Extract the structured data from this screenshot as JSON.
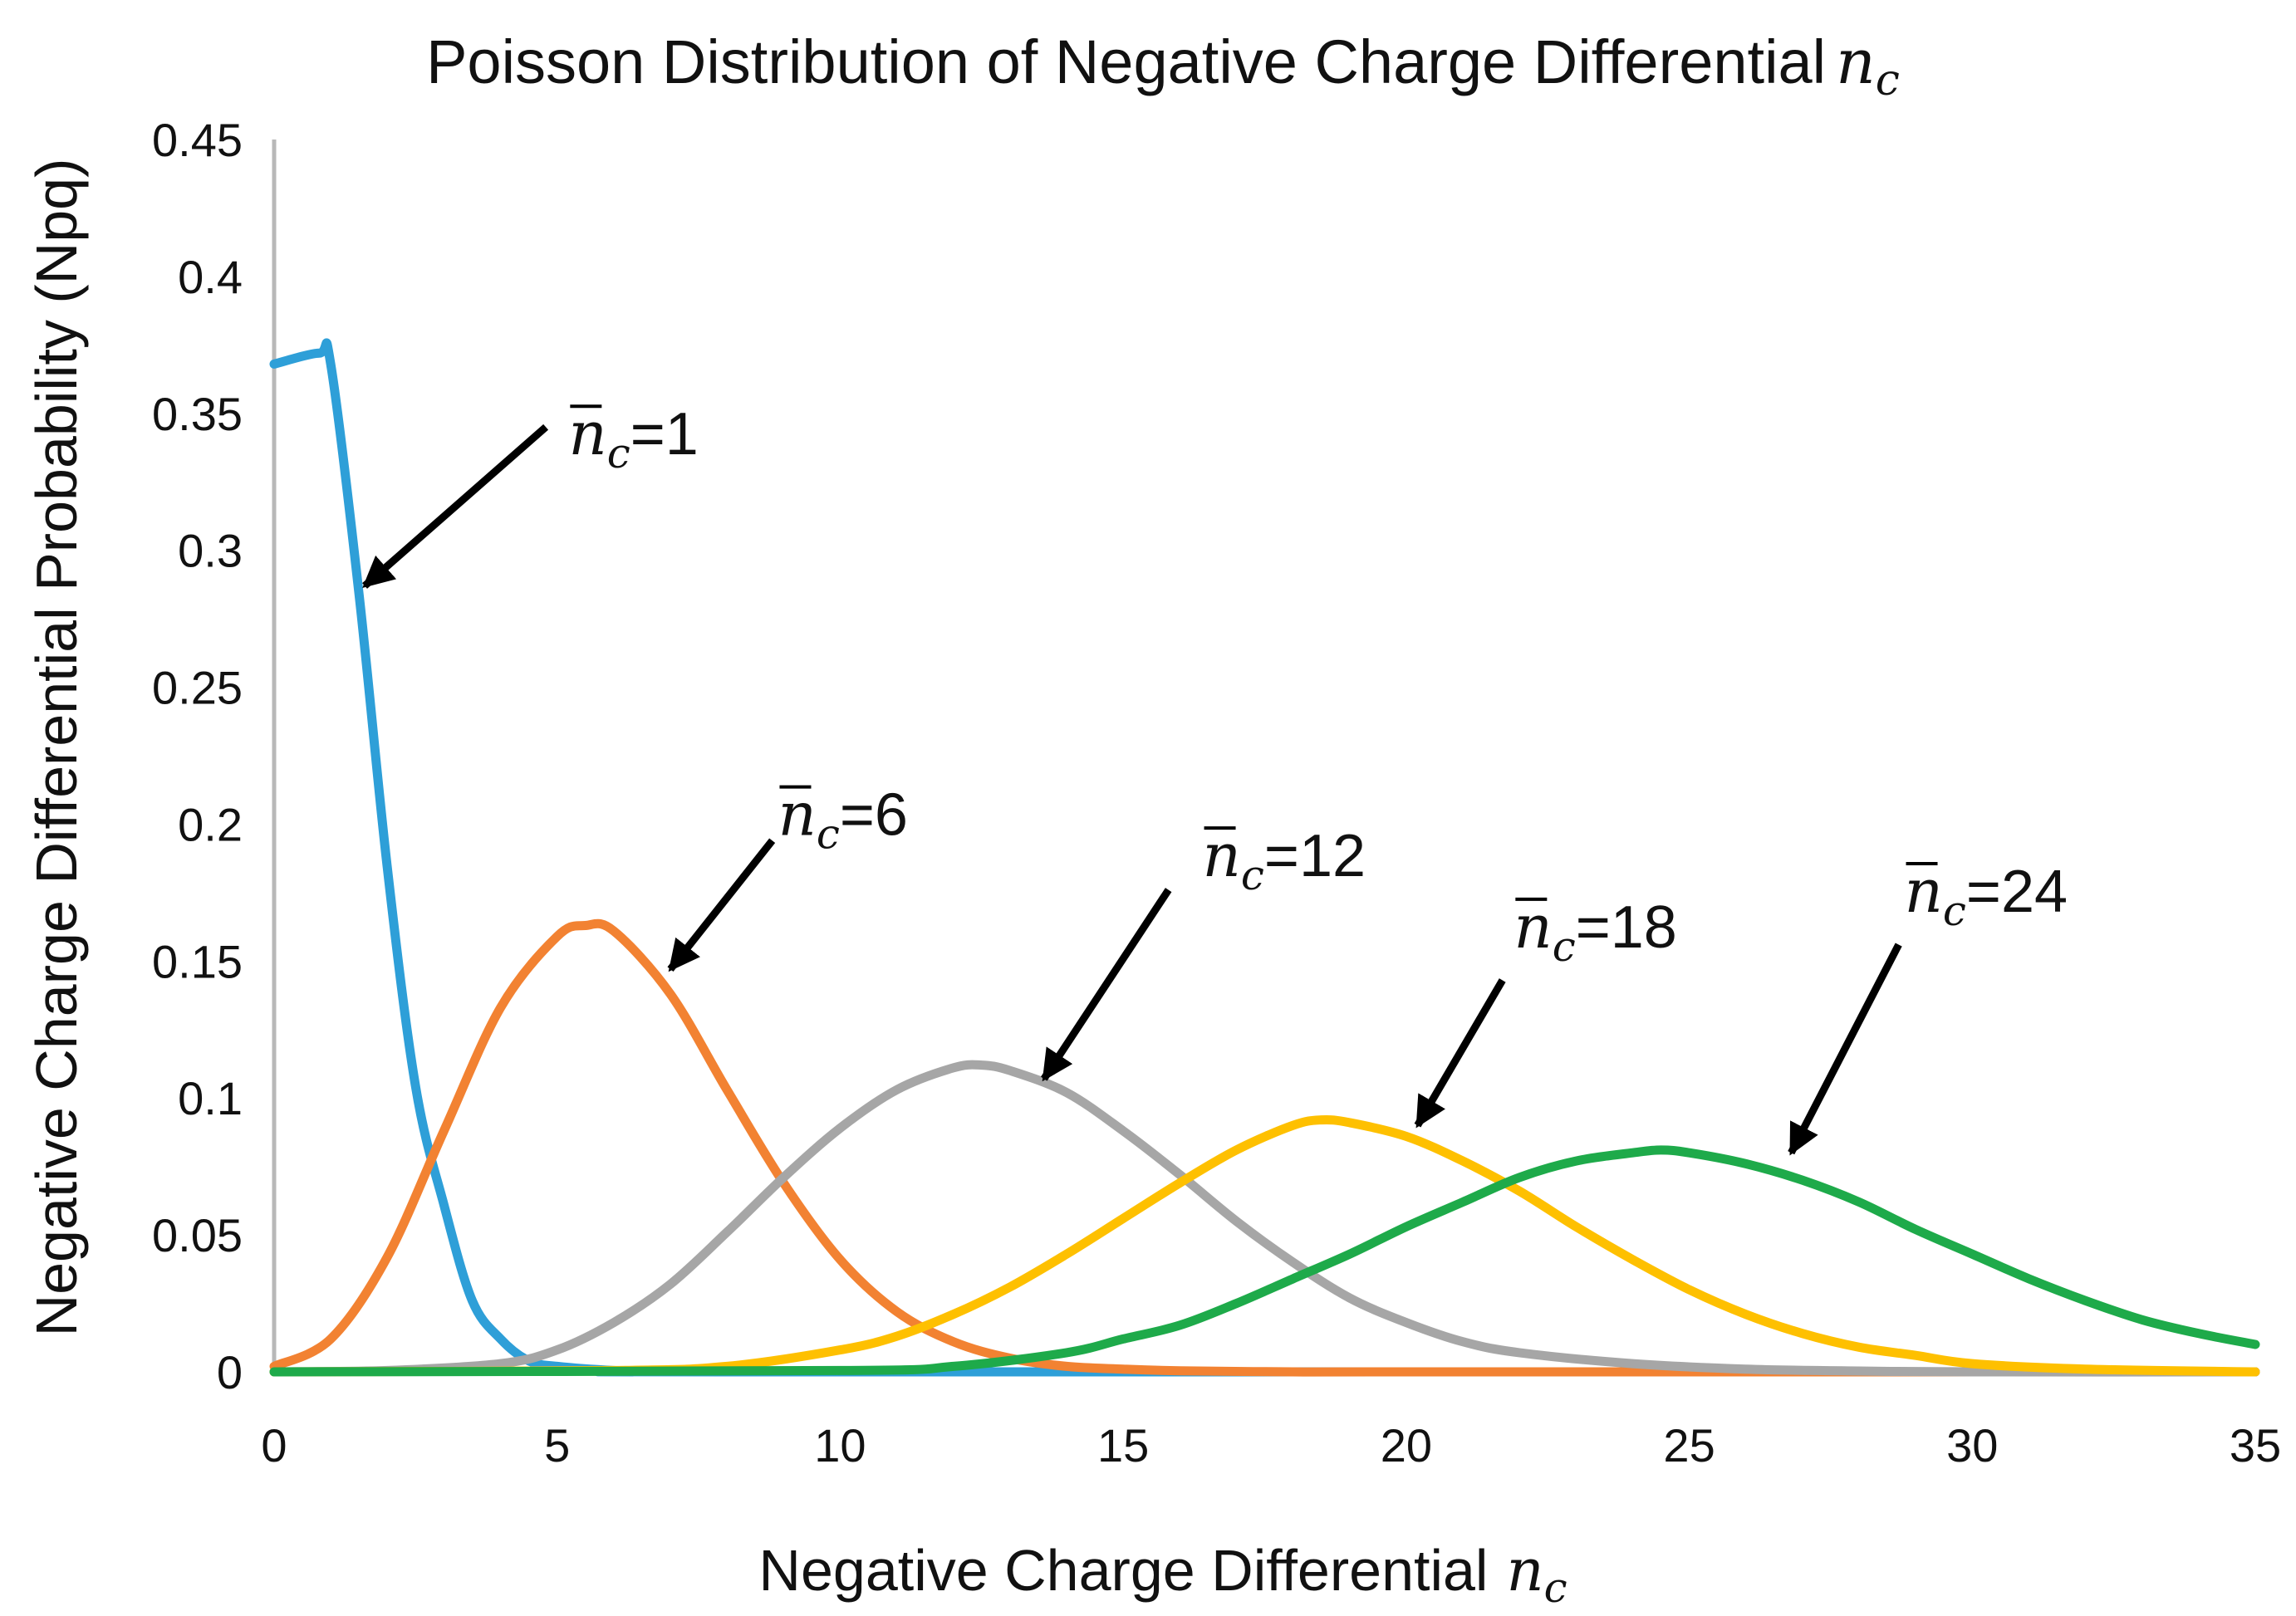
{
  "chart_data": {
    "type": "line",
    "title": "Poisson Distribution of Negative Charge Differential",
    "title_math": "n",
    "title_math_sub": "c",
    "xlabel": "Negative Charge Differential",
    "xlabel_math": "n",
    "xlabel_math_sub": "c",
    "ylabel": "Negative Charge Differential Probability (Npq)",
    "xlim": [
      0,
      35
    ],
    "ylim": [
      0,
      0.45
    ],
    "x_ticks": [
      0,
      5,
      10,
      15,
      20,
      25,
      30,
      35
    ],
    "x_tick_labels": [
      "0",
      "5",
      "10",
      "15",
      "20",
      "25",
      "30",
      "35"
    ],
    "y_ticks": [
      0,
      0.05,
      0.1,
      0.15,
      0.2,
      0.25,
      0.3,
      0.35,
      0.4,
      0.45
    ],
    "y_tick_labels": [
      "0",
      "0.05",
      "0.1",
      "0.15",
      "0.2",
      "0.25",
      "0.3",
      "0.35",
      "0.4",
      "0.45"
    ],
    "grid": false,
    "legend": "none",
    "series": [
      {
        "name": "n̄c=1",
        "mean": 1,
        "color": "#2E9FD8",
        "x": [
          0,
          0.8,
          1,
          1.5,
          2,
          2.5,
          3,
          3.5,
          4,
          4.5,
          5,
          6,
          7,
          8,
          35
        ],
        "values": [
          0.368,
          0.372,
          0.368,
          0.284,
          0.184,
          0.104,
          0.061,
          0.026,
          0.012,
          0.004,
          0.002,
          0.0005,
          0.0001,
          0,
          0
        ]
      },
      {
        "name": "n̄c=6",
        "mean": 6,
        "color": "#F28232",
        "x": [
          0,
          1,
          2,
          3,
          4,
          5,
          5.5,
          6,
          7,
          8,
          9,
          10,
          11,
          12,
          13,
          14,
          15,
          16,
          18,
          20,
          35
        ],
        "values": [
          0.002,
          0.012,
          0.042,
          0.088,
          0.133,
          0.159,
          0.163,
          0.161,
          0.138,
          0.103,
          0.069,
          0.041,
          0.022,
          0.011,
          0.005,
          0.002,
          0.001,
          0.0004,
          0,
          0,
          0
        ]
      },
      {
        "name": "n̄c=12",
        "mean": 12,
        "color": "#A6A6A6",
        "x": [
          0,
          2,
          4,
          5,
          6,
          7,
          8,
          9,
          10,
          11,
          12,
          12.5,
          13,
          14,
          15,
          16,
          17,
          18,
          19,
          20,
          21,
          22,
          24,
          26,
          28,
          30,
          35
        ],
        "values": [
          0,
          0.0005,
          0.003,
          0.008,
          0.018,
          0.032,
          0.051,
          0.071,
          0.089,
          0.103,
          0.111,
          0.112,
          0.11,
          0.102,
          0.088,
          0.072,
          0.055,
          0.04,
          0.027,
          0.018,
          0.011,
          0.007,
          0.003,
          0.001,
          0.0003,
          0,
          0
        ]
      },
      {
        "name": "n̄c=18",
        "mean": 18,
        "color": "#FEC000",
        "x": [
          0,
          6,
          8,
          10,
          11,
          12,
          13,
          14,
          15,
          16,
          17,
          18,
          18.5,
          19,
          20,
          21,
          22,
          23,
          24,
          25,
          26,
          27,
          28,
          29,
          30,
          32,
          35
        ],
        "values": [
          0,
          0.0005,
          0.002,
          0.008,
          0.013,
          0.021,
          0.031,
          0.043,
          0.056,
          0.069,
          0.081,
          0.09,
          0.092,
          0.091,
          0.086,
          0.077,
          0.066,
          0.053,
          0.041,
          0.03,
          0.021,
          0.014,
          0.009,
          0.006,
          0.003,
          0.001,
          0
        ]
      },
      {
        "name": "n̄c=24",
        "mean": 24,
        "color": "#1EAA4A",
        "x": [
          0,
          10,
          12,
          14,
          15,
          16,
          17,
          18,
          19,
          20,
          21,
          22,
          23,
          24,
          24.5,
          25,
          26,
          27,
          28,
          29,
          30,
          31,
          32,
          33,
          34,
          35
        ],
        "values": [
          0,
          0.0005,
          0.002,
          0.007,
          0.012,
          0.017,
          0.025,
          0.034,
          0.043,
          0.053,
          0.062,
          0.071,
          0.077,
          0.08,
          0.081,
          0.08,
          0.076,
          0.07,
          0.062,
          0.052,
          0.043,
          0.034,
          0.026,
          0.019,
          0.014,
          0.01
        ]
      }
    ],
    "annotations": [
      {
        "label": "=1",
        "math": "n",
        "sub": "c",
        "series": 0,
        "text_x": 5.2,
        "text_y": 0.335,
        "arrow_from": [
          4.8,
          0.345
        ],
        "arrow_to": [
          1.6,
          0.287
        ]
      },
      {
        "label": "=6",
        "math": "n",
        "sub": "c",
        "series": 1,
        "text_x": 8.9,
        "text_y": 0.196,
        "arrow_from": [
          8.8,
          0.194
        ],
        "arrow_to": [
          7.0,
          0.147
        ]
      },
      {
        "label": "=12",
        "math": "n",
        "sub": "c",
        "series": 2,
        "text_x": 16.4,
        "text_y": 0.181,
        "arrow_from": [
          15.8,
          0.176
        ],
        "arrow_to": [
          13.6,
          0.107
        ]
      },
      {
        "label": "=18",
        "math": "n",
        "sub": "c",
        "series": 3,
        "text_x": 21.9,
        "text_y": 0.155,
        "arrow_from": [
          21.7,
          0.143
        ],
        "arrow_to": [
          20.2,
          0.09
        ]
      },
      {
        "label": "=24",
        "math": "n",
        "sub": "c",
        "series": 4,
        "text_x": 28.8,
        "text_y": 0.168,
        "arrow_from": [
          28.7,
          0.156
        ],
        "arrow_to": [
          26.8,
          0.08
        ]
      }
    ]
  }
}
